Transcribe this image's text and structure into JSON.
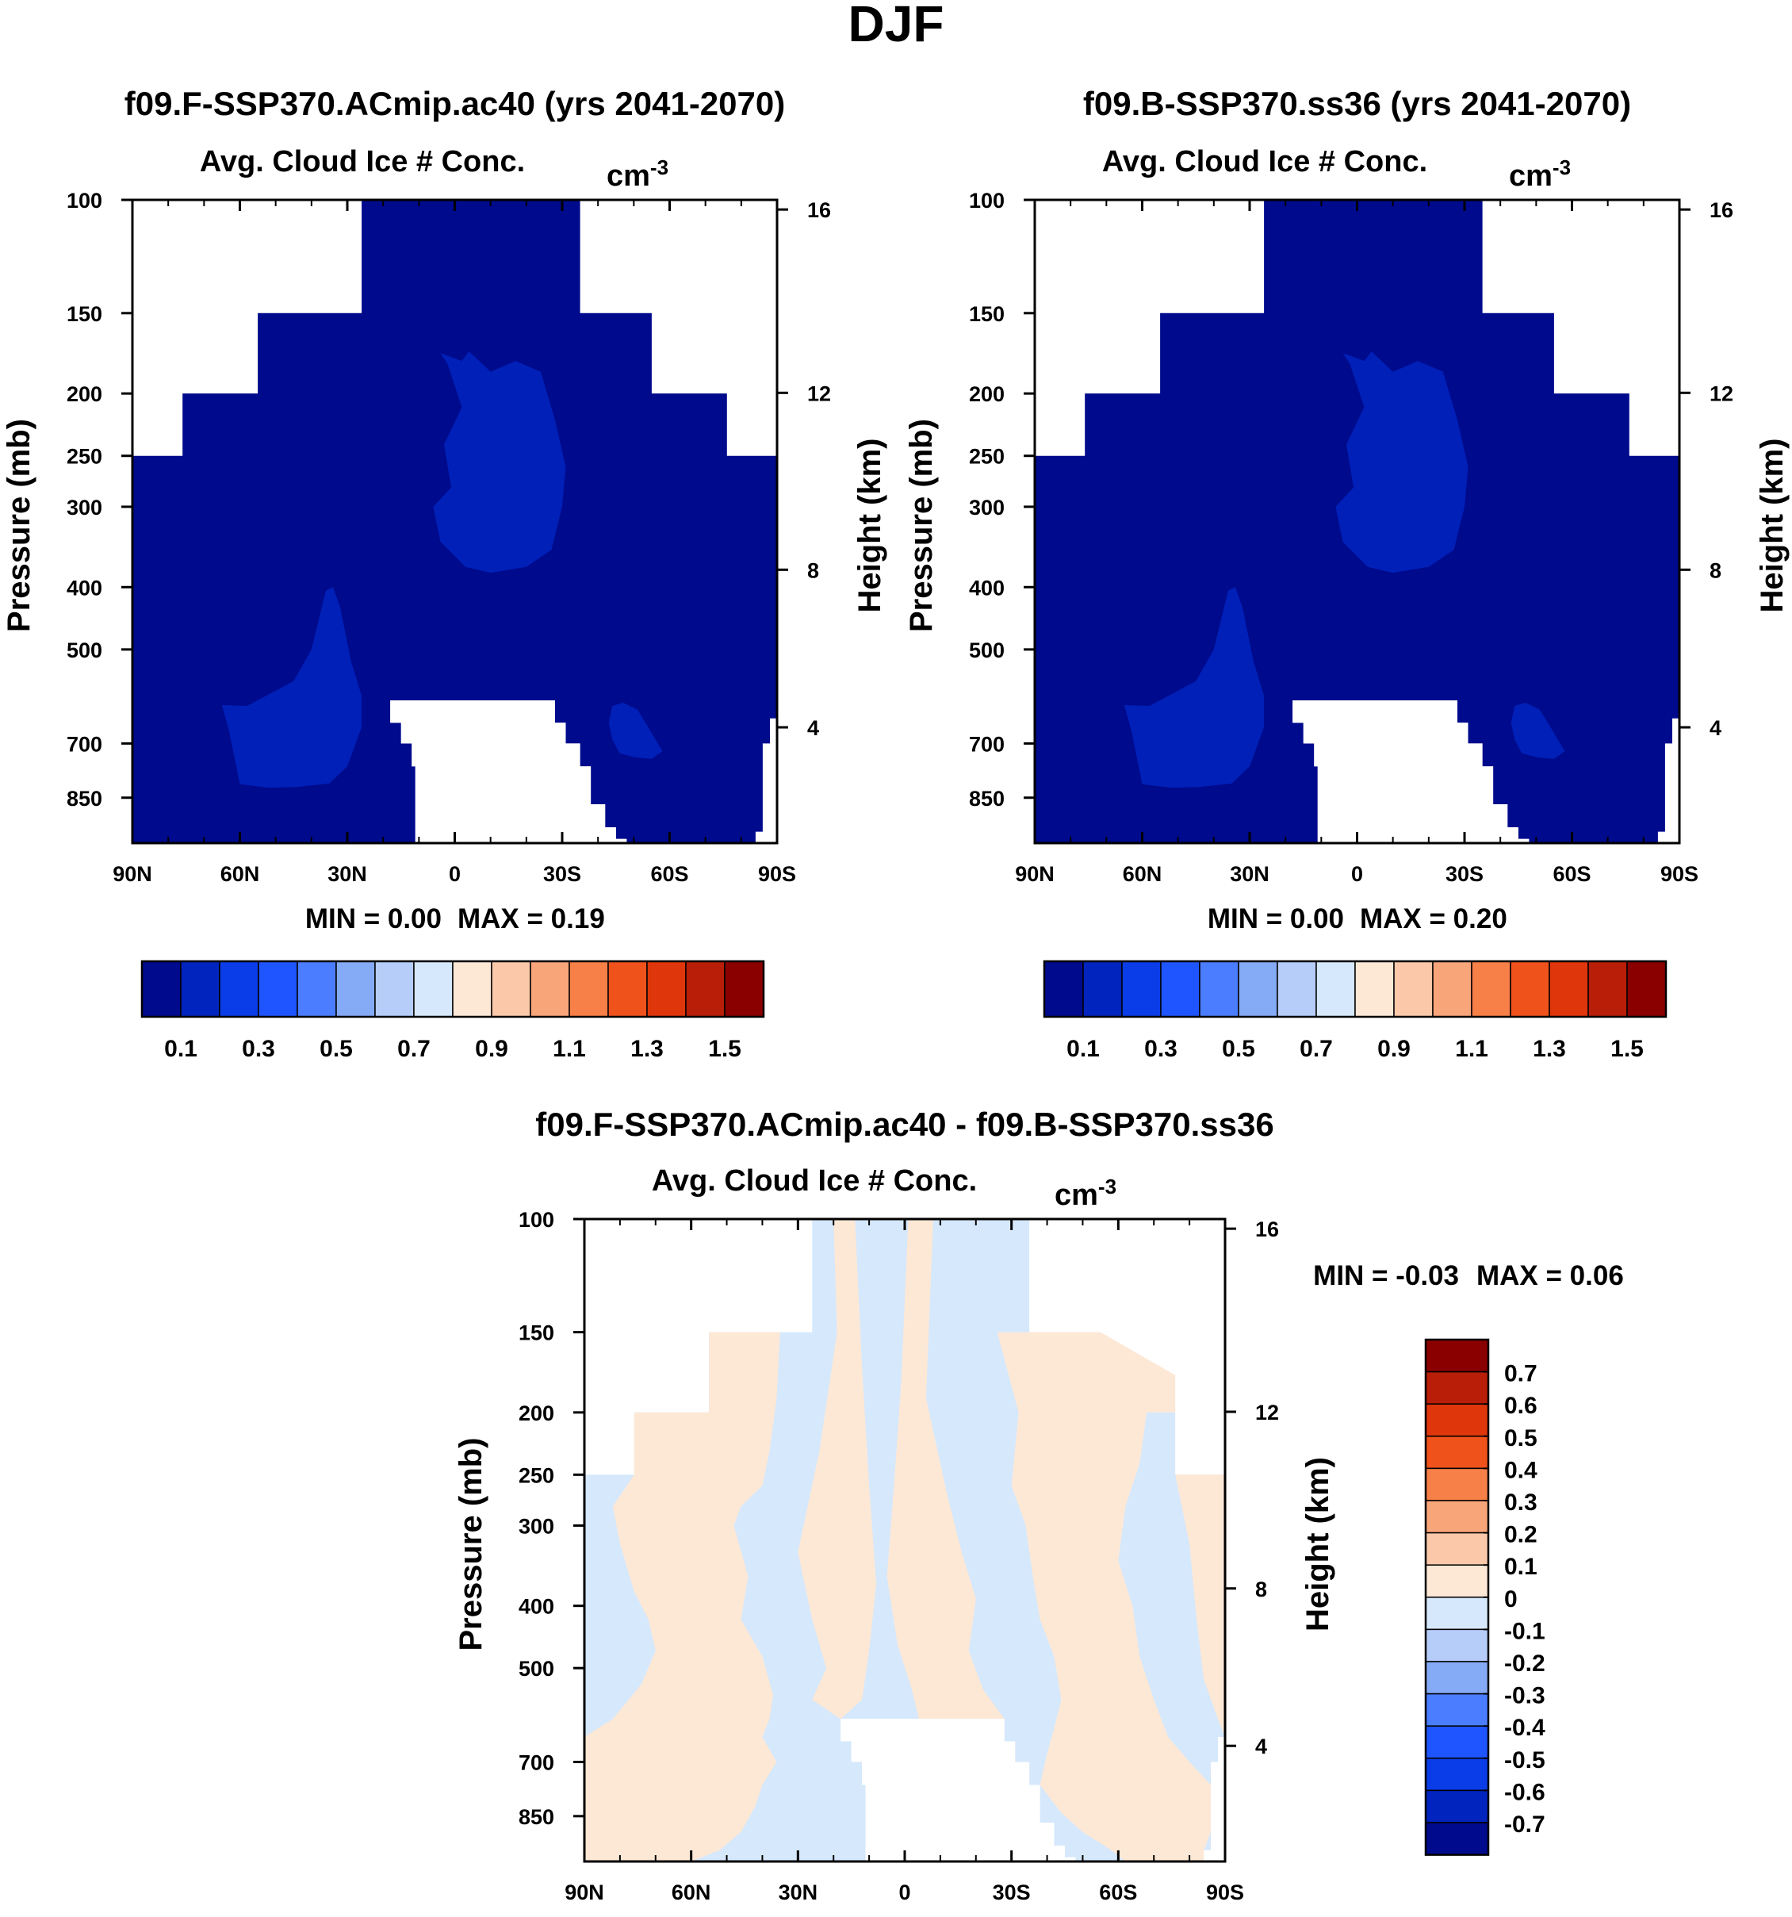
{
  "figure": {
    "title": "DJF",
    "colors": {
      "white": "#ffffff",
      "frame": "#000000",
      "abs_bg": "#000a8c",
      "abs_blob": "#0020b8",
      "diff_pos": "#fde8d6",
      "diff_neg": "#d6e8fb"
    }
  },
  "chart_data": [
    {
      "type": "heatmap",
      "title": "f09.F-SSP370.ACmip.ac40 (yrs 2041-2070)",
      "variable": "Avg. Cloud Ice # Conc.",
      "units": "cm:S:-3:N:",
      "xlabel": "",
      "ylabel": "Pressure (mb)",
      "ylabel_right": "Height (km)",
      "x_ticks": [
        "90N",
        "60N",
        "30N",
        "0",
        "30S",
        "60S",
        "90S"
      ],
      "xlim": [
        90,
        -90
      ],
      "y_ticks": [
        "100",
        "150",
        "200",
        "250",
        "300",
        "400",
        "500",
        "700",
        "850"
      ],
      "ylim_mb": [
        100,
        1000
      ],
      "y2_ticks": [
        "16",
        "12",
        "8",
        "4"
      ],
      "min_label": "MIN =   0.00",
      "max_label": "MAX =   0.19",
      "min": 0.0,
      "max": 0.19,
      "levels": [
        0.1,
        0.2,
        0.3,
        0.4,
        0.5,
        0.6,
        0.7,
        0.8,
        0.9,
        1.0,
        1.1,
        1.2,
        1.3,
        1.4,
        1.5
      ],
      "colorbar_labels": [
        "0.1",
        "0.3",
        "0.5",
        "0.7",
        "0.9",
        "1.1",
        "1.3",
        "1.5"
      ],
      "colorbar_orientation": "horizontal"
    },
    {
      "type": "heatmap",
      "title": "f09.B-SSP370.ss36 (yrs 2041-2070)",
      "variable": "Avg. Cloud Ice # Conc.",
      "units": "cm:S:-3:N:",
      "xlabel": "",
      "ylabel": "Pressure (mb)",
      "ylabel_right": "Height (km)",
      "x_ticks": [
        "90N",
        "60N",
        "30N",
        "0",
        "30S",
        "60S",
        "90S"
      ],
      "xlim": [
        90,
        -90
      ],
      "y_ticks": [
        "100",
        "150",
        "200",
        "250",
        "300",
        "400",
        "500",
        "700",
        "850"
      ],
      "ylim_mb": [
        100,
        1000
      ],
      "y2_ticks": [
        "16",
        "12",
        "8",
        "4"
      ],
      "min_label": "MIN =   0.00",
      "max_label": "MAX =   0.20",
      "min": 0.0,
      "max": 0.2,
      "levels": [
        0.1,
        0.2,
        0.3,
        0.4,
        0.5,
        0.6,
        0.7,
        0.8,
        0.9,
        1.0,
        1.1,
        1.2,
        1.3,
        1.4,
        1.5
      ],
      "colorbar_labels": [
        "0.1",
        "0.3",
        "0.5",
        "0.7",
        "0.9",
        "1.1",
        "1.3",
        "1.5"
      ],
      "colorbar_orientation": "horizontal"
    },
    {
      "type": "heatmap",
      "title": "f09.F-SSP370.ACmip.ac40 - f09.B-SSP370.ss36",
      "variable": "Avg. Cloud Ice # Conc.",
      "units": "cm:S:-3:N:",
      "xlabel": "",
      "ylabel": "Pressure (mb)",
      "ylabel_right": "Height (km)",
      "x_ticks": [
        "90N",
        "60N",
        "30N",
        "0",
        "30S",
        "60S",
        "90S"
      ],
      "xlim": [
        90,
        -90
      ],
      "y_ticks": [
        "100",
        "150",
        "200",
        "250",
        "300",
        "400",
        "500",
        "700",
        "850"
      ],
      "ylim_mb": [
        100,
        1000
      ],
      "y2_ticks": [
        "16",
        "12",
        "8",
        "4"
      ],
      "min_label": "MIN =  -0.03",
      "max_label": "MAX =   0.06",
      "min": -0.03,
      "max": 0.06,
      "levels": [
        -0.7,
        -0.6,
        -0.5,
        -0.4,
        -0.3,
        -0.2,
        -0.1,
        0,
        0.1,
        0.2,
        0.3,
        0.4,
        0.5,
        0.6,
        0.7
      ],
      "colorbar_labels": [
        "0.7",
        "0.6",
        "0.5",
        "0.4",
        "0.3",
        "0.2",
        "0.1",
        "0",
        "-0.1",
        "-0.2",
        "-0.3",
        "-0.4",
        "-0.5",
        "-0.6",
        "-0.7"
      ],
      "colorbar_orientation": "vertical"
    }
  ],
  "colorbars": {
    "absolute": [
      "#000a8c",
      "#0024bd",
      "#0a3ce8",
      "#1f55ff",
      "#4a7dff",
      "#85aaf6",
      "#b6cdfa",
      "#d6e8fb",
      "#fde8d6",
      "#fbc8aa",
      "#f9a57a",
      "#f77f48",
      "#f0521c",
      "#e0360b",
      "#b81e08",
      "#8a0000"
    ],
    "difference": [
      "#000a8c",
      "#0024bd",
      "#0a3ce8",
      "#1f55ff",
      "#4a7dff",
      "#85aaf6",
      "#b6cdfa",
      "#d6e8fb",
      "#fde8d6",
      "#fbc8aa",
      "#f9a57a",
      "#f77f48",
      "#f0521c",
      "#e0360b",
      "#b81e08",
      "#8a0000"
    ]
  }
}
